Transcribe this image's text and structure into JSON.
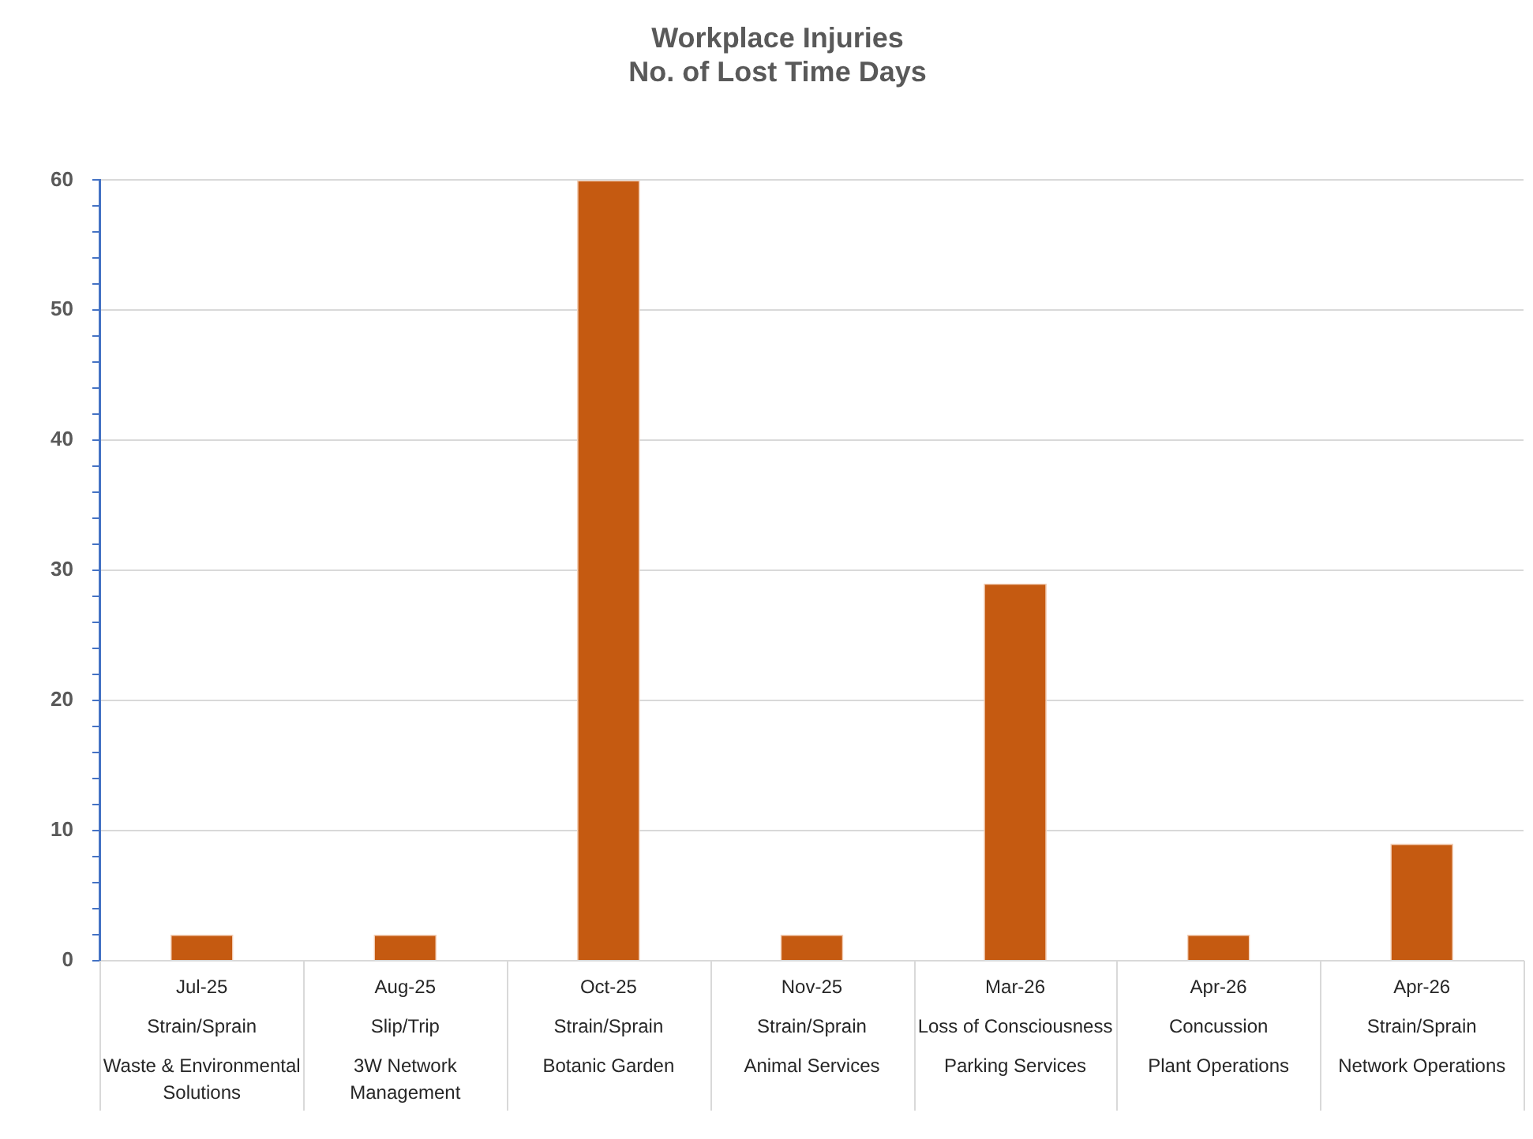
{
  "chart_data": {
    "type": "bar",
    "title": "Workplace Injuries\nNo. of Lost Time Days",
    "categories": [
      "Jul-25\nStrain/Sprain\nWaste & Environmental Solutions",
      "Aug-25\nSlip/Trip\n3W Network Management",
      "Oct-25\nStrain/Sprain\nBotanic Garden",
      "Nov-25\nStrain/Sprain\nAnimal Services",
      "Mar-26\nLoss of Consciousness\nParking Services",
      "Apr-26\nConcussion\nPlant Operations",
      "Apr-26\nStrain/Sprain\nNetwork Operations"
    ],
    "values": [
      2,
      2,
      60,
      2,
      29,
      2,
      9
    ],
    "color": "#c55a11",
    "ylim": [
      0,
      60
    ],
    "yticks": [
      0,
      {
        "value": 2,
        "label": null
      },
      {
        "value": 4,
        "label": null
      },
      {
        "value": 6,
        "label": null
      },
      {
        "value": 8,
        "label": null
      },
      10,
      {
        "value": 12,
        "label": null
      },
      {
        "value": 14,
        "label": null
      },
      {
        "value": 16,
        "label": null
      },
      {
        "value": 18,
        "label": null
      },
      20,
      {
        "value": 22,
        "label": null
      },
      {
        "value": 24,
        "label": null
      },
      {
        "value": 26,
        "label": null
      },
      {
        "value": 28,
        "label": null
      },
      30,
      {
        "value": 32,
        "label": null
      },
      {
        "value": 34,
        "label": null
      },
      {
        "value": 36,
        "label": null
      },
      {
        "value": 38,
        "label": null
      },
      40,
      {
        "value": 42,
        "label": null
      },
      {
        "value": 44,
        "label": null
      },
      {
        "value": 46,
        "label": null
      },
      {
        "value": 48,
        "label": null
      },
      50,
      {
        "value": 52,
        "label": null
      },
      {
        "value": 54,
        "label": null
      },
      {
        "value": 56,
        "label": null
      },
      {
        "value": 58,
        "label": null
      },
      60
    ],
    "grid": "y",
    "legend": false
  }
}
